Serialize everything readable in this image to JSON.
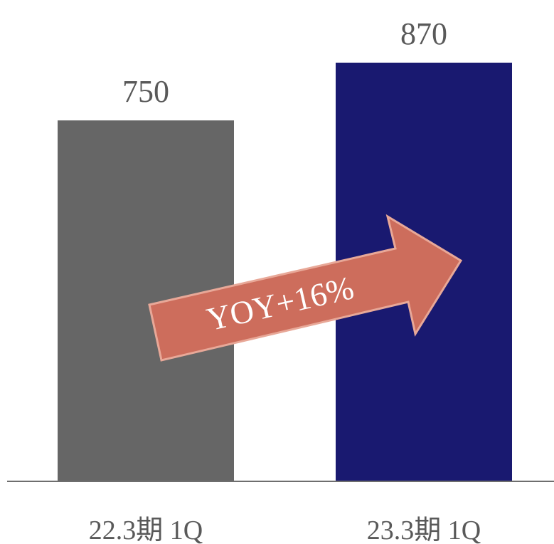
{
  "chart_data": {
    "type": "bar",
    "categories": [
      "22.3期 1Q",
      "23.3期 1Q"
    ],
    "values": [
      750,
      870
    ],
    "colors": [
      "#666666",
      "#191970"
    ],
    "ylim": [
      0,
      870
    ],
    "annotation": {
      "text": "YOY+16%",
      "shape": "arrow",
      "color": "#CD6D5C"
    },
    "title": "",
    "xlabel": "",
    "ylabel": "",
    "grid": false,
    "legend": "none"
  }
}
